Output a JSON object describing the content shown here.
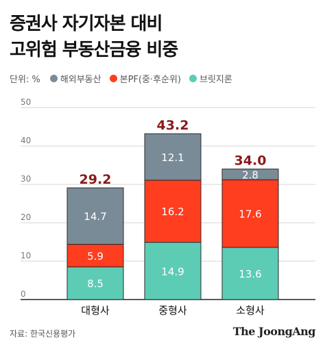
{
  "header": {
    "title_line1": "증권사 자기자본 대비",
    "title_line2": "고위험 부동산금융 비중"
  },
  "legend": {
    "unit": "단위: %",
    "items": [
      {
        "label": "해외부동산",
        "color": "#7a8b98"
      },
      {
        "label": "본PF(중·후순위)",
        "color": "#ff3d1f"
      },
      {
        "label": "브릿지론",
        "color": "#5cccb5"
      }
    ]
  },
  "chart_data": {
    "type": "bar",
    "stacked": true,
    "categories": [
      "대형사",
      "중형사",
      "소형사"
    ],
    "series": [
      {
        "name": "브릿지론",
        "values": [
          8.5,
          14.9,
          13.6
        ],
        "color": "#5cccb5"
      },
      {
        "name": "본PF(중·후순위)",
        "values": [
          5.9,
          16.2,
          17.6
        ],
        "color": "#ff3d1f"
      },
      {
        "name": "해외부동산",
        "values": [
          14.7,
          12.1,
          2.8
        ],
        "color": "#7a8b98"
      }
    ],
    "totals": [
      29.2,
      43.2,
      34.0
    ],
    "total_labels": [
      "29.2",
      "43.2",
      "34.0"
    ],
    "value_labels": [
      [
        "8.5",
        "14.9",
        "13.6"
      ],
      [
        "5.9",
        "16.2",
        "17.6"
      ],
      [
        "14.7",
        "12.1",
        "2.8"
      ]
    ],
    "yticks": [
      0,
      10,
      20,
      30,
      40,
      50
    ],
    "ylim": [
      0,
      50
    ],
    "grid": true,
    "total_color": "#8b1a1a"
  },
  "footer": {
    "source": "자료: 한국신용평가",
    "logo": "The JoongAng"
  }
}
